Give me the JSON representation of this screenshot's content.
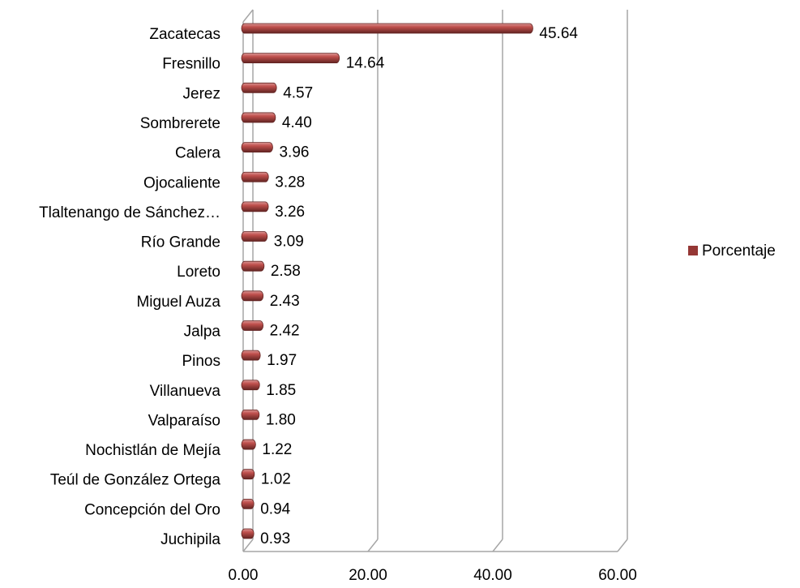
{
  "chart_data": {
    "type": "bar",
    "orientation": "horizontal",
    "categories": [
      "Zacatecas",
      "Fresnillo",
      "Jerez",
      "Sombrerete",
      "Calera",
      "Ojocaliente",
      "Tlaltenango de Sánchez…",
      "Río Grande",
      "Loreto ",
      "Miguel Auza",
      "Jalpa",
      "Pinos",
      "Villanueva",
      "Valparaíso",
      "Nochistlán de Mejía",
      "Teúl de González Ortega",
      "Concepción del Oro",
      "Juchipila"
    ],
    "series": [
      {
        "name": "Porcentaje",
        "color": "#953735",
        "values": [
          45.64,
          14.64,
          4.57,
          4.4,
          3.96,
          3.28,
          3.26,
          3.09,
          2.58,
          2.43,
          2.42,
          1.97,
          1.85,
          1.8,
          1.22,
          1.02,
          0.94,
          0.93
        ],
        "value_labels": [
          "45.64",
          "14.64",
          "4.57",
          "4.40",
          "3.96",
          "3.28",
          "3.26",
          "3.09",
          "2.58",
          "2.43",
          "2.42",
          "1.97",
          "1.85",
          "1.80",
          "1.22",
          "1.02",
          "0.94",
          "0.93"
        ]
      }
    ],
    "xlim": [
      0,
      60
    ],
    "xticks": [
      {
        "value": 0,
        "label": "0.00"
      },
      {
        "value": 20,
        "label": "20.00"
      },
      {
        "value": 40,
        "label": "40.00"
      },
      {
        "value": 60,
        "label": "60.00"
      }
    ],
    "grid": true,
    "legend": "right"
  }
}
